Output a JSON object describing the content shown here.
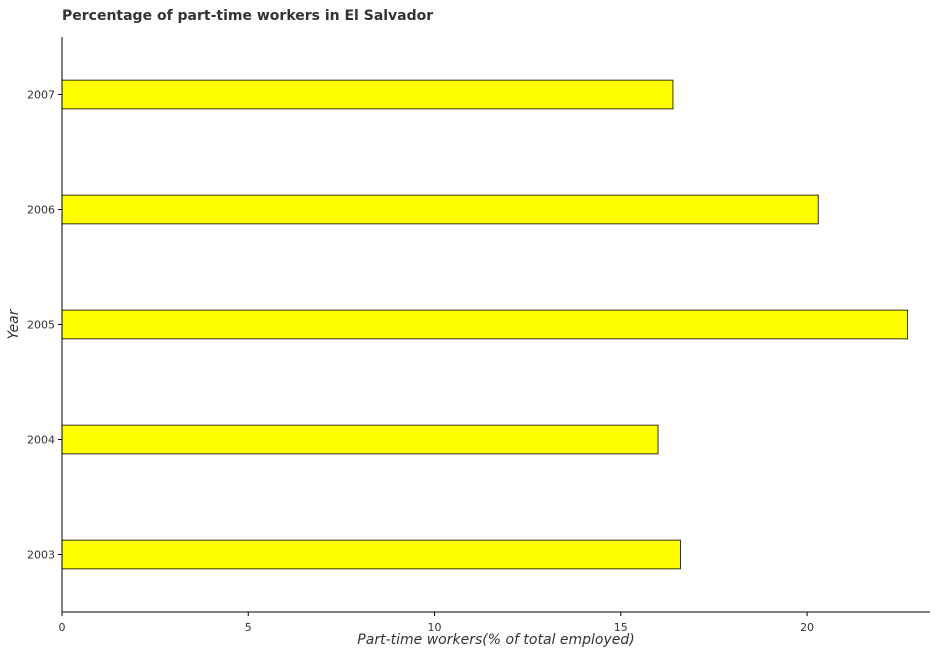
{
  "chart_data": {
    "type": "bar",
    "orientation": "horizontal",
    "title": "Percentage of part-time workers in El Salvador",
    "xlabel": "Part-time workers(% of total employed)",
    "ylabel": "Year",
    "categories": [
      "2003",
      "2004",
      "2005",
      "2006",
      "2007"
    ],
    "values": [
      16.6,
      16.0,
      22.7,
      20.3,
      16.4
    ],
    "xlim": [
      0,
      23.3
    ],
    "xticks": [
      0,
      5,
      10,
      15,
      20
    ],
    "bar_color": "#ffff00",
    "bar_edge_color": "#000000",
    "grid": false,
    "legend": "none"
  }
}
